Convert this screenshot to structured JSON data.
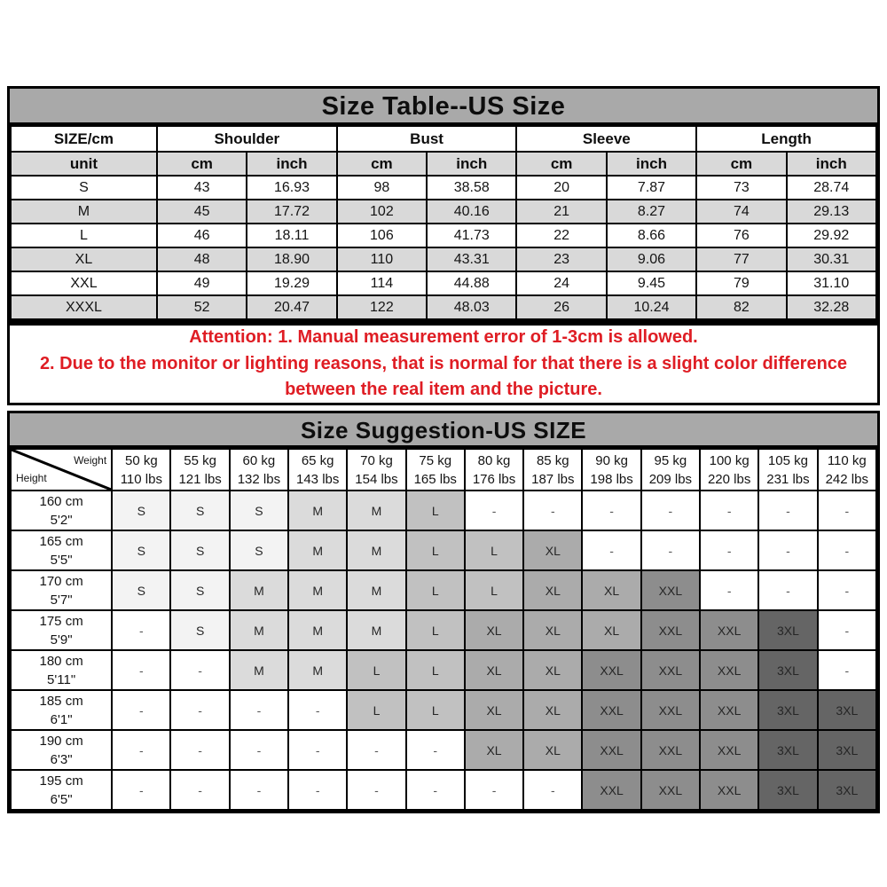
{
  "colors": {
    "title_bar": "#a9a9a9",
    "stripe": "#d9d9d9",
    "border": "#000000",
    "attention_text": "#df1d24"
  },
  "size_table": {
    "title": "Size Table--US Size",
    "corner_label": "SIZE/cm",
    "unit_label": "unit",
    "groups": [
      {
        "label": "Shoulder"
      },
      {
        "label": "Bust"
      },
      {
        "label": "Sleeve"
      },
      {
        "label": "Length"
      }
    ],
    "unit_cols": [
      "cm",
      "inch",
      "cm",
      "inch",
      "cm",
      "inch",
      "cm",
      "inch"
    ],
    "rows": [
      {
        "size": "S",
        "values": [
          "43",
          "16.93",
          "98",
          "38.58",
          "20",
          "7.87",
          "73",
          "28.74"
        ]
      },
      {
        "size": "M",
        "values": [
          "45",
          "17.72",
          "102",
          "40.16",
          "21",
          "8.27",
          "74",
          "29.13"
        ]
      },
      {
        "size": "L",
        "values": [
          "46",
          "18.11",
          "106",
          "41.73",
          "22",
          "8.66",
          "76",
          "29.92"
        ]
      },
      {
        "size": "XL",
        "values": [
          "48",
          "18.90",
          "110",
          "43.31",
          "23",
          "9.06",
          "77",
          "30.31"
        ]
      },
      {
        "size": "XXL",
        "values": [
          "49",
          "19.29",
          "114",
          "44.88",
          "24",
          "9.45",
          "79",
          "31.10"
        ]
      },
      {
        "size": "XXXL",
        "values": [
          "52",
          "20.47",
          "122",
          "48.03",
          "26",
          "10.24",
          "82",
          "32.28"
        ]
      }
    ]
  },
  "attention": {
    "line1": "Attention:  1. Manual measurement error of 1-3cm is allowed.",
    "line2": "2. Due to the monitor or lighting reasons, that is normal for that there is a slight color difference between the real item and the picture."
  },
  "size_suggestion": {
    "title": "Size Suggestion-US SIZE",
    "corner": {
      "top_right": "Weight",
      "bottom_left": "Height"
    },
    "weights": [
      {
        "kg": "50 kg",
        "lbs": "110 lbs"
      },
      {
        "kg": "55 kg",
        "lbs": "121 lbs"
      },
      {
        "kg": "60 kg",
        "lbs": "132 lbs"
      },
      {
        "kg": "65 kg",
        "lbs": "143 lbs"
      },
      {
        "kg": "70 kg",
        "lbs": "154 lbs"
      },
      {
        "kg": "75 kg",
        "lbs": "165 lbs"
      },
      {
        "kg": "80 kg",
        "lbs": "176 lbs"
      },
      {
        "kg": "85 kg",
        "lbs": "187 lbs"
      },
      {
        "kg": "90 kg",
        "lbs": "198 lbs"
      },
      {
        "kg": "95 kg",
        "lbs": "209 lbs"
      },
      {
        "kg": "100 kg",
        "lbs": "220 lbs"
      },
      {
        "kg": "105 kg",
        "lbs": "231 lbs"
      },
      {
        "kg": "110 kg",
        "lbs": "242 lbs"
      }
    ],
    "rows": [
      {
        "height_cm": "160 cm",
        "height_ft": "5'2\"",
        "sizes": [
          "S",
          "S",
          "S",
          "M",
          "M",
          "L",
          "-",
          "-",
          "-",
          "-",
          "-",
          "-",
          "-"
        ]
      },
      {
        "height_cm": "165 cm",
        "height_ft": "5'5\"",
        "sizes": [
          "S",
          "S",
          "S",
          "M",
          "M",
          "L",
          "L",
          "XL",
          "-",
          "-",
          "-",
          "-",
          "-"
        ]
      },
      {
        "height_cm": "170 cm",
        "height_ft": "5'7\"",
        "sizes": [
          "S",
          "S",
          "M",
          "M",
          "M",
          "L",
          "L",
          "XL",
          "XL",
          "XXL",
          "-",
          "-",
          "-"
        ]
      },
      {
        "height_cm": "175 cm",
        "height_ft": "5'9\"",
        "sizes": [
          "-",
          "S",
          "M",
          "M",
          "M",
          "L",
          "XL",
          "XL",
          "XL",
          "XXL",
          "XXL",
          "3XL",
          "-"
        ]
      },
      {
        "height_cm": "180 cm",
        "height_ft": "5'11\"",
        "sizes": [
          "-",
          "-",
          "M",
          "M",
          "L",
          "L",
          "XL",
          "XL",
          "XXL",
          "XXL",
          "XXL",
          "3XL",
          "-"
        ]
      },
      {
        "height_cm": "185 cm",
        "height_ft": "6'1\"",
        "sizes": [
          "-",
          "-",
          "-",
          "-",
          "L",
          "L",
          "XL",
          "XL",
          "XXL",
          "XXL",
          "XXL",
          "3XL",
          "3XL"
        ]
      },
      {
        "height_cm": "190 cm",
        "height_ft": "6'3\"",
        "sizes": [
          "-",
          "-",
          "-",
          "-",
          "-",
          "-",
          "XL",
          "XL",
          "XXL",
          "XXL",
          "XXL",
          "3XL",
          "3XL"
        ]
      },
      {
        "height_cm": "195 cm",
        "height_ft": "6'5\"",
        "sizes": [
          "-",
          "-",
          "-",
          "-",
          "-",
          "-",
          "-",
          "-",
          "XXL",
          "XXL",
          "XXL",
          "3XL",
          "3XL"
        ]
      }
    ],
    "size_colors": {
      "S": "#f3f3f3",
      "M": "#dbdbdb",
      "L": "#c1c1c1",
      "XL": "#ababab",
      "XXL": "#8d8d8d",
      "3XL": "#656565",
      "-": "#ffffff"
    }
  }
}
